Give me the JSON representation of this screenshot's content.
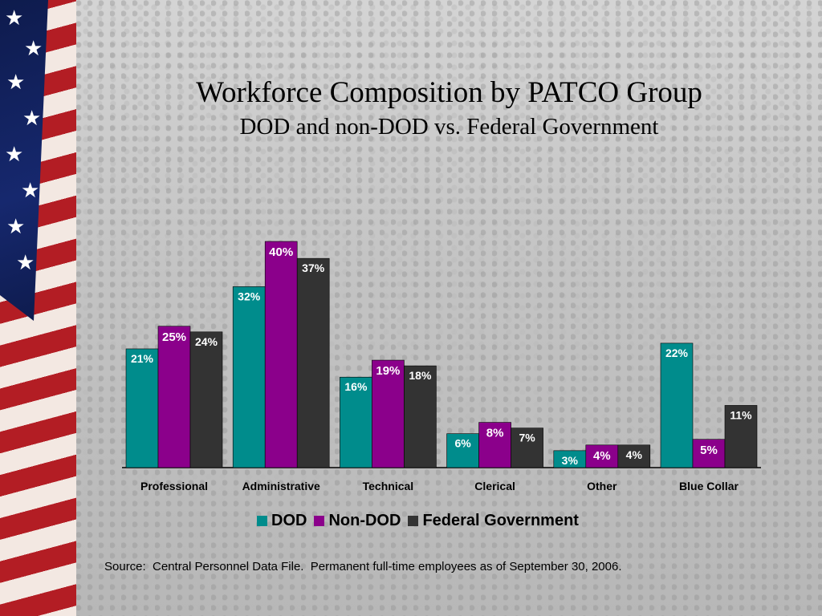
{
  "title": "Workforce Composition by PATCO Group",
  "subtitle": "DOD and non-DOD vs. Federal Government",
  "source": "Source:  Central Personnel Data File.  Permanent full-time employees as of September 30, 2006.",
  "colors": {
    "dod": "#008c8c",
    "non_dod": "#8b008b",
    "federal": "#333333"
  },
  "chart_data": {
    "type": "bar",
    "categories": [
      "Professional",
      "Administrative",
      "Technical",
      "Clerical",
      "Other",
      "Blue Collar"
    ],
    "series": [
      {
        "name": "DOD",
        "values": [
          21,
          32,
          16,
          6,
          3,
          22
        ],
        "labels": [
          "21%",
          "32%",
          "16%",
          "6%",
          "3%",
          "22%"
        ]
      },
      {
        "name": "Non-DOD",
        "values": [
          25,
          40,
          19,
          8,
          4,
          5
        ],
        "labels": [
          "25%",
          "40%",
          "19%",
          "8%",
          "4%",
          "5%"
        ]
      },
      {
        "name": "Federal Government",
        "values": [
          24,
          37,
          18,
          7,
          4,
          11
        ],
        "labels": [
          "24%",
          "37%",
          "18%",
          "7%",
          "4%",
          "11%"
        ]
      }
    ],
    "ylim": [
      0,
      40
    ],
    "legend_position": "bottom",
    "grid": false
  }
}
